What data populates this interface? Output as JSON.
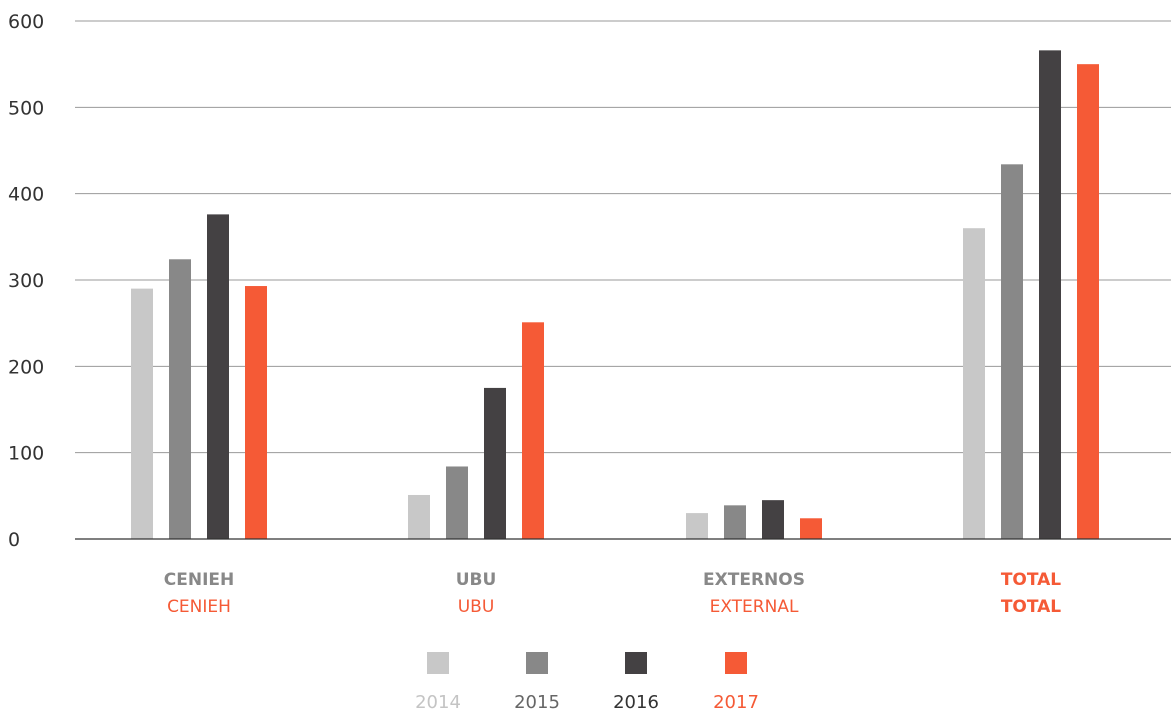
{
  "chart_data": {
    "type": "bar",
    "categories": [
      {
        "label_es": "CENIEH",
        "label_en": "CENIEH",
        "highlight": false
      },
      {
        "label_es": "UBU",
        "label_en": "UBU",
        "highlight": false
      },
      {
        "label_es": "EXTERNOS",
        "label_en": "EXTERNAL",
        "highlight": false
      },
      {
        "label_es": "TOTAL",
        "label_en": "TOTAL",
        "highlight": true
      }
    ],
    "series": [
      {
        "name": "2014",
        "color": "#c8c8c8",
        "label_color": "#c4c4c4",
        "values": [
          290,
          51,
          30,
          360
        ]
      },
      {
        "name": "2015",
        "color": "#888888",
        "label_color": "#666666",
        "values": [
          324,
          84,
          39,
          434
        ]
      },
      {
        "name": "2016",
        "color": "#444143",
        "label_color": "#333333",
        "values": [
          376,
          175,
          45,
          566
        ]
      },
      {
        "name": "2017",
        "color": "#f55a36",
        "label_color": "#f55a36",
        "values": [
          293,
          251,
          24,
          550
        ]
      }
    ],
    "ylim": [
      0,
      600
    ],
    "yticks": [
      0,
      100,
      200,
      300,
      400,
      500,
      600
    ],
    "grid": true,
    "legend_position": "bottom",
    "colors": {
      "category_primary": "#888888",
      "category_secondary": "#f55a36",
      "highlight": "#f55a36",
      "grid": "#999999",
      "axis": "#333333"
    }
  }
}
